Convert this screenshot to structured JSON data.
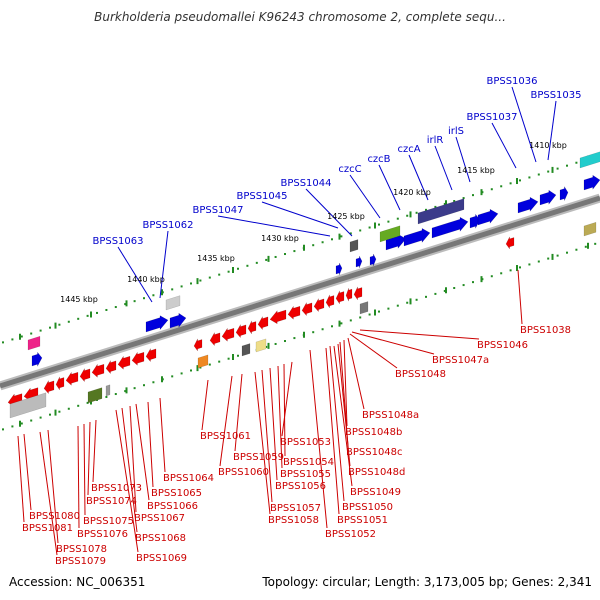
{
  "title": "Burkholderia pseudomallei K96243 chromosome 2, complete sequ...",
  "footer": {
    "accession": "Accession: NC_006351",
    "summary": "Topology: circular; Length: 3,173,005 bp; Genes: 2,341"
  },
  "colors": {
    "forward_label": "#0000cc",
    "reverse_label": "#cc0000",
    "forward_feature": "#0000dd",
    "reverse_feature": "#ee0000",
    "tick": "#228b22",
    "backbone": "#808080"
  },
  "kbp_ticks": [
    "1410 kbp",
    "1415 kbp",
    "1420 kbp",
    "1425 kbp",
    "1430 kbp",
    "1435 kbp",
    "1440 kbp",
    "1445 kbp"
  ],
  "forward_labels": [
    "BPSS1036",
    "BPSS1035",
    "BPSS1037",
    "irlS",
    "irlR",
    "czcA",
    "czcB",
    "czcC",
    "BPSS1044",
    "BPSS1045",
    "BPSS1047",
    "BPSS1062",
    "BPSS1063"
  ],
  "reverse_labels": [
    "BPSS1038",
    "BPSS1046",
    "BPSS1047a",
    "BPSS1048",
    "BPSS1048a",
    "BPSS1048b",
    "BPSS1048c",
    "BPSS1048d",
    "BPSS1049",
    "BPSS1050",
    "BPSS1051",
    "BPSS1052",
    "BPSS1053",
    "BPSS1054",
    "BPSS1055",
    "BPSS1056",
    "BPSS1057",
    "BPSS1058",
    "BPSS1059",
    "BPSS1060",
    "BPSS1061",
    "BPSS1064",
    "BPSS1065",
    "BPSS1066",
    "BPSS1067",
    "BPSS1068",
    "BPSS1069",
    "BPSS1073",
    "BPSS1074",
    "BPSS1075",
    "BPSS1076",
    "BPSS1078",
    "BPSS1079",
    "BPSS1080",
    "BPSS1081"
  ]
}
